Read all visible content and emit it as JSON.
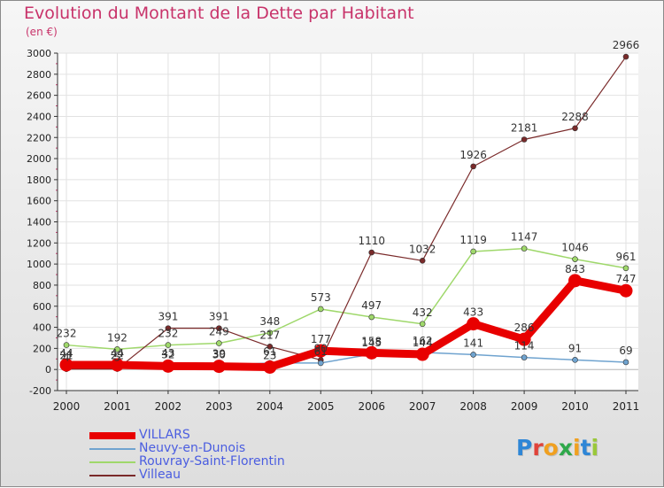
{
  "title": "Evolution du Montant de la Dette par Habitant",
  "subtitle": "(en €)",
  "logo": {
    "text": "Proxiti",
    "colors": [
      "#2e86d6",
      "#e0433a",
      "#f0a020",
      "#2ea84a",
      "#f0a020",
      "#2e86d6",
      "#9ac83a"
    ]
  },
  "chart_data": {
    "type": "line",
    "x": [
      "2000",
      "2001",
      "2002",
      "2003",
      "2004",
      "2005",
      "2006",
      "2007",
      "2008",
      "2009",
      "2010",
      "2011"
    ],
    "ylim": [
      -200,
      3000
    ],
    "yticks": [
      -200,
      0,
      200,
      400,
      600,
      800,
      1000,
      1200,
      1400,
      1600,
      1800,
      2000,
      2200,
      2400,
      2600,
      2800,
      3000
    ],
    "grid": true,
    "legend_position": "bottom-left",
    "series": [
      {
        "name": "VILLARS",
        "color": "#e80000",
        "values": [
          44,
          44,
          32,
          30,
          23,
          177,
          158,
          144,
          433,
          286,
          843,
          747
        ],
        "labels": [
          "44",
          "44",
          "32",
          "30",
          "23",
          "177",
          "158",
          "144",
          "433",
          "286",
          "843",
          "747"
        ]
      },
      {
        "name": "Neuvy-en-Dunois",
        "color": "#6fa3cf",
        "values": [
          21,
          22,
          43,
          39,
          61,
          61,
          145,
          162,
          141,
          114,
          91,
          69
        ],
        "labels": [
          "21",
          "22",
          "43",
          "39",
          "61",
          "61",
          "145",
          "162",
          "141",
          "114",
          "91",
          "69"
        ]
      },
      {
        "name": "Rouvray-Saint-Florentin",
        "color": "#9fd86b",
        "values": [
          232,
          192,
          232,
          249,
          348,
          573,
          497,
          432,
          1119,
          1147,
          1046,
          961
        ],
        "labels": [
          "232",
          "192",
          "232",
          "249",
          "348",
          "573",
          "497",
          "432",
          "1119",
          "1147",
          "1046",
          "961"
        ]
      },
      {
        "name": "Villeau",
        "color": "#7a2a2a",
        "values": [
          4,
          5,
          391,
          391,
          217,
          90,
          1110,
          1032,
          1926,
          2181,
          2288,
          2966
        ],
        "labels": [
          "4",
          "5",
          "391",
          "391",
          "217",
          "90",
          "1110",
          "1032",
          "1926",
          "2181",
          "2288",
          "2966"
        ]
      }
    ]
  }
}
